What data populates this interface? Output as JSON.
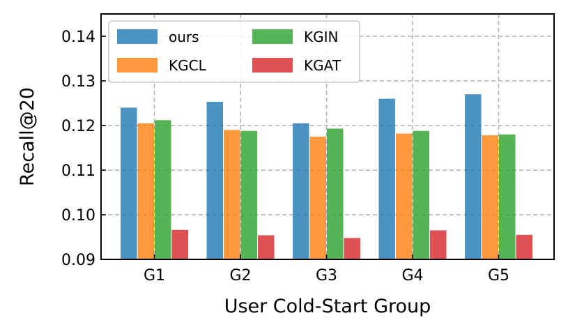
{
  "chart_data": {
    "type": "bar",
    "title": "",
    "xlabel": "User Cold-Start Group",
    "ylabel": "Recall@20",
    "categories": [
      "G1",
      "G2",
      "G3",
      "G4",
      "G5"
    ],
    "ylim": [
      0.09,
      0.145
    ],
    "yticks": [
      "0.09",
      "0.10",
      "0.11",
      "0.12",
      "0.13",
      "0.14"
    ],
    "grid": true,
    "legend_position": "top-left",
    "series": [
      {
        "name": "ours",
        "color": "#1f77b4",
        "values": [
          0.124,
          0.1253,
          0.1205,
          0.126,
          0.127
        ]
      },
      {
        "name": "KGCL",
        "color": "#ff7f0e",
        "values": [
          0.1205,
          0.119,
          0.1175,
          0.1182,
          0.1178
        ]
      },
      {
        "name": "KGIN",
        "color": "#2ca02c",
        "values": [
          0.1212,
          0.1188,
          0.1193,
          0.1188,
          0.118
        ]
      },
      {
        "name": "KGAT",
        "color": "#d62728",
        "values": [
          0.0966,
          0.0954,
          0.0948,
          0.0965,
          0.0955
        ]
      }
    ]
  }
}
